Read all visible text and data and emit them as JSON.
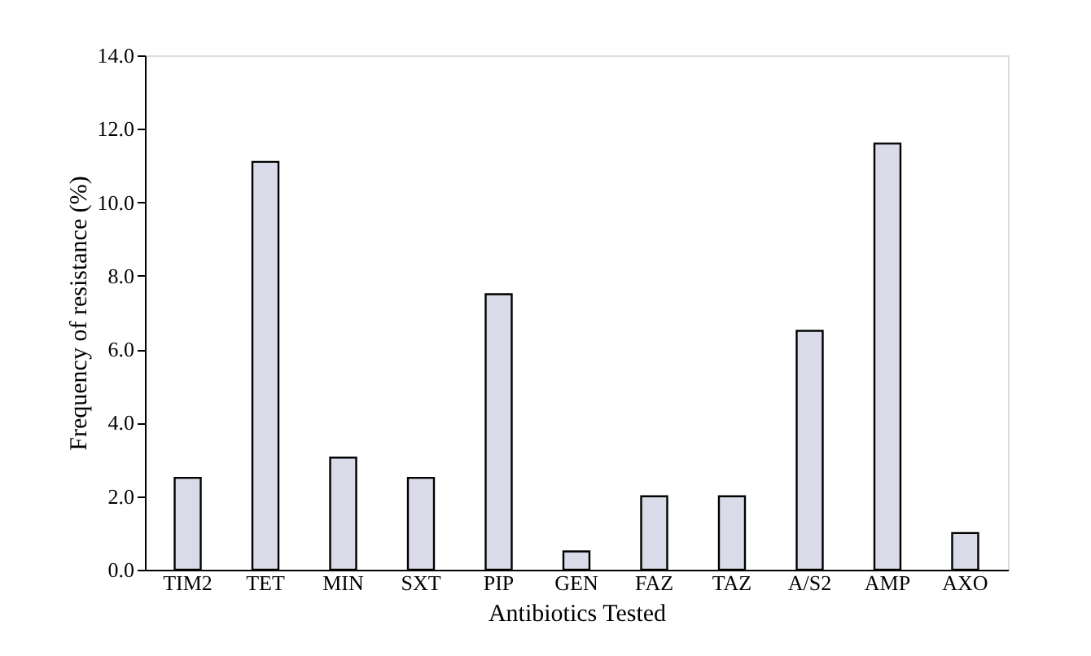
{
  "chart_data": {
    "type": "bar",
    "xlabel": "Antibiotics Tested",
    "ylabel": "Frequency of resistance (%)",
    "categories": [
      "TIM2",
      "TET",
      "MIN",
      "SXT",
      "PIP",
      "GEN",
      "FAZ",
      "TAZ",
      "A/S2",
      "AMP",
      "AXO"
    ],
    "values": [
      2.5,
      11.1,
      3.05,
      2.5,
      7.5,
      0.5,
      2.0,
      2.0,
      6.5,
      11.6,
      1.0
    ],
    "color": "#d9dce8",
    "ylim": [
      0,
      14
    ],
    "yticks": [
      {
        "value": 0,
        "label": "0.0"
      },
      {
        "value": 2,
        "label": "2.0"
      },
      {
        "value": 4,
        "label": "4.0"
      },
      {
        "value": 6,
        "label": "6.0"
      },
      {
        "value": 8,
        "label": "8.0"
      },
      {
        "value": 10,
        "label": "10.0"
      },
      {
        "value": 12,
        "label": "12.0"
      },
      {
        "value": 14,
        "label": "14.0"
      }
    ],
    "grid": false
  }
}
